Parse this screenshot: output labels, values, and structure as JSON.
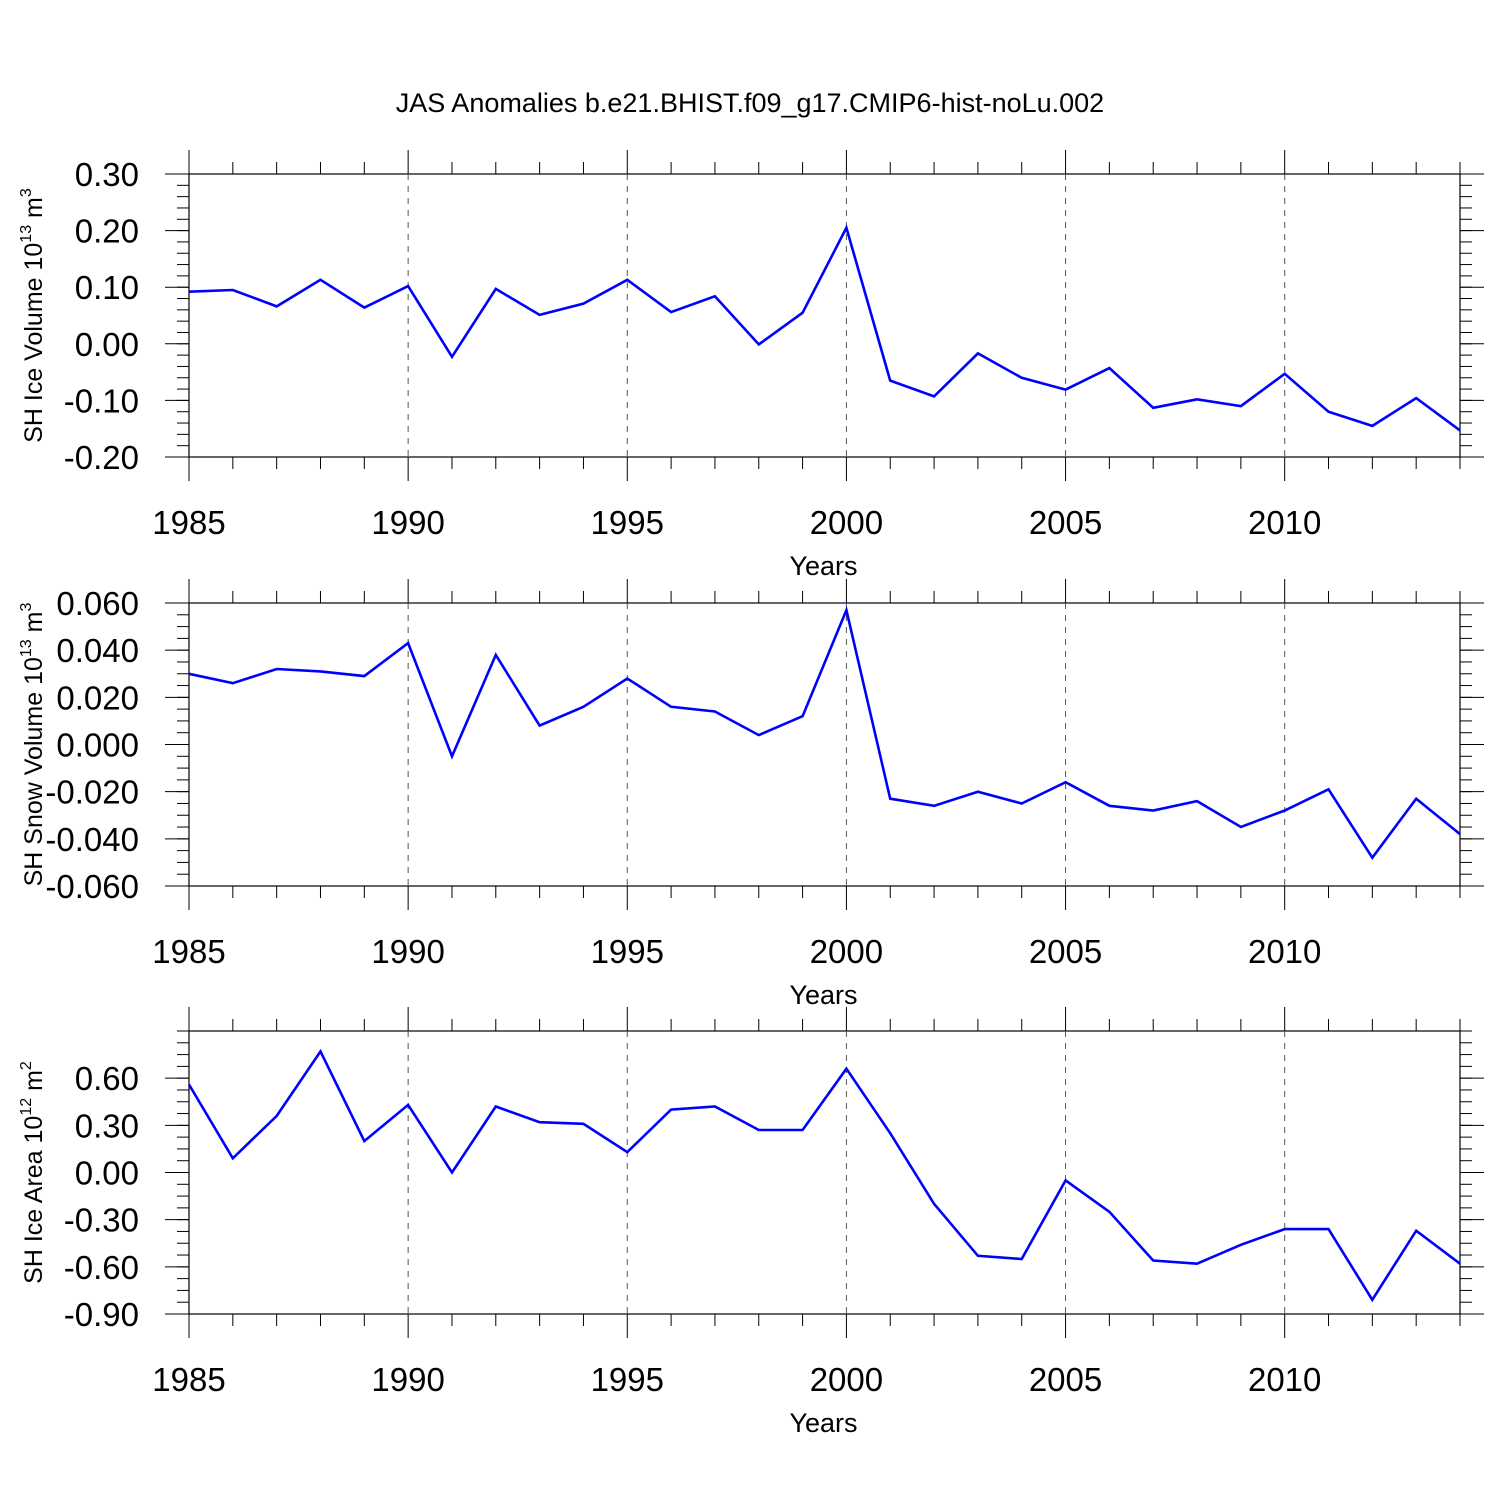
{
  "figure_title": "JAS Anomalies b.e21.BHIST.f09_g17.CMIP6-hist-noLu.002",
  "style": {
    "line_color": "#0000ff",
    "axis_color": "#000000",
    "grid_color": "#555555"
  },
  "chart_data": [
    {
      "type": "line",
      "title": "JAS Anomalies b.e21.BHIST.f09_g17.CMIP6-hist-noLu.002",
      "ylabel_main": "SH Ice Volume 10",
      "ylabel_sup": "13",
      "ylabel_unit": " m",
      "ylabel_unit_sup": "3",
      "xlabel": "Years",
      "xlim": [
        1985,
        2014
      ],
      "ylim": [
        -0.2,
        0.3
      ],
      "yticks": [
        -0.2,
        -0.1,
        0.0,
        0.1,
        0.2,
        0.3
      ],
      "ytick_labels": [
        "-0.20",
        "-0.10",
        "0.00",
        "0.10",
        "0.20",
        "0.30"
      ],
      "yminor_step": 0.02,
      "xticks": [
        1985,
        1990,
        1995,
        2000,
        2005,
        2010
      ],
      "xtick_labels": [
        "1985",
        "1990",
        "1995",
        "2000",
        "2005",
        "2010"
      ],
      "grid": "vertical dashed at major x ticks",
      "x": [
        1985,
        1986,
        1987,
        1988,
        1989,
        1990,
        1991,
        1992,
        1993,
        1994,
        1995,
        1996,
        1997,
        1998,
        1999,
        2000,
        2001,
        2002,
        2003,
        2004,
        2005,
        2006,
        2007,
        2008,
        2009,
        2010,
        2011,
        2012,
        2013,
        2014
      ],
      "series": [
        {
          "name": "SH Ice Volume",
          "values": [
            0.092,
            0.095,
            0.066,
            0.113,
            0.064,
            0.102,
            -0.023,
            0.097,
            0.051,
            0.071,
            0.113,
            0.056,
            0.084,
            -0.001,
            0.055,
            0.205,
            -0.065,
            -0.093,
            -0.017,
            -0.06,
            -0.081,
            -0.043,
            -0.113,
            -0.098,
            -0.11,
            -0.053,
            -0.12,
            -0.145,
            -0.096,
            -0.153
          ]
        }
      ]
    },
    {
      "type": "line",
      "ylabel_main": "SH Snow Volume 10",
      "ylabel_sup": "13",
      "ylabel_unit": " m",
      "ylabel_unit_sup": "3",
      "xlabel": "Years",
      "xlim": [
        1985,
        2014
      ],
      "ylim": [
        -0.06,
        0.06
      ],
      "yticks": [
        -0.06,
        -0.04,
        -0.02,
        0.0,
        0.02,
        0.04,
        0.06
      ],
      "ytick_labels": [
        "-0.060",
        "-0.040",
        "-0.020",
        "0.000",
        "0.020",
        "0.040",
        "0.060"
      ],
      "yminor_step": 0.005,
      "xticks": [
        1985,
        1990,
        1995,
        2000,
        2005,
        2010
      ],
      "xtick_labels": [
        "1985",
        "1990",
        "1995",
        "2000",
        "2005",
        "2010"
      ],
      "grid": "vertical dashed at major x ticks",
      "x": [
        1985,
        1986,
        1987,
        1988,
        1989,
        1990,
        1991,
        1992,
        1993,
        1994,
        1995,
        1996,
        1997,
        1998,
        1999,
        2000,
        2001,
        2002,
        2003,
        2004,
        2005,
        2006,
        2007,
        2008,
        2009,
        2010,
        2011,
        2012,
        2013,
        2014
      ],
      "series": [
        {
          "name": "SH Snow Volume",
          "values": [
            0.03,
            0.026,
            0.032,
            0.031,
            0.029,
            0.043,
            -0.005,
            0.038,
            0.008,
            0.016,
            0.028,
            0.016,
            0.014,
            0.004,
            0.012,
            0.057,
            -0.023,
            -0.026,
            -0.02,
            -0.025,
            -0.016,
            -0.026,
            -0.028,
            -0.024,
            -0.035,
            -0.028,
            -0.019,
            -0.048,
            -0.023,
            -0.038
          ]
        }
      ]
    },
    {
      "type": "line",
      "ylabel_main": "SH Ice Area 10",
      "ylabel_sup": "12",
      "ylabel_unit": " m",
      "ylabel_unit_sup": "2",
      "xlabel": "Years",
      "xlim": [
        1985,
        2014
      ],
      "ylim": [
        -0.9,
        0.9
      ],
      "yticks": [
        -0.9,
        -0.6,
        -0.3,
        0.0,
        0.3,
        0.6
      ],
      "ytick_labels": [
        "-0.90",
        "-0.60",
        "-0.30",
        "0.00",
        "0.30",
        "0.60"
      ],
      "yminor_step": 0.075,
      "xticks": [
        1985,
        1990,
        1995,
        2000,
        2005,
        2010
      ],
      "xtick_labels": [
        "1985",
        "1990",
        "1995",
        "2000",
        "2005",
        "2010"
      ],
      "grid": "vertical dashed at major x ticks",
      "x": [
        1985,
        1986,
        1987,
        1988,
        1989,
        1990,
        1991,
        1992,
        1993,
        1994,
        1995,
        1996,
        1997,
        1998,
        1999,
        2000,
        2001,
        2002,
        2003,
        2004,
        2005,
        2006,
        2007,
        2008,
        2009,
        2010,
        2011,
        2012,
        2013,
        2014
      ],
      "series": [
        {
          "name": "SH Ice Area",
          "values": [
            0.56,
            0.09,
            0.36,
            0.77,
            0.2,
            0.43,
            0.0,
            0.42,
            0.32,
            0.31,
            0.13,
            0.4,
            0.42,
            0.27,
            0.27,
            0.66,
            0.25,
            -0.2,
            -0.53,
            -0.55,
            -0.05,
            -0.25,
            -0.56,
            -0.58,
            -0.46,
            -0.36,
            -0.36,
            -0.81,
            -0.37,
            -0.58
          ]
        }
      ]
    }
  ]
}
